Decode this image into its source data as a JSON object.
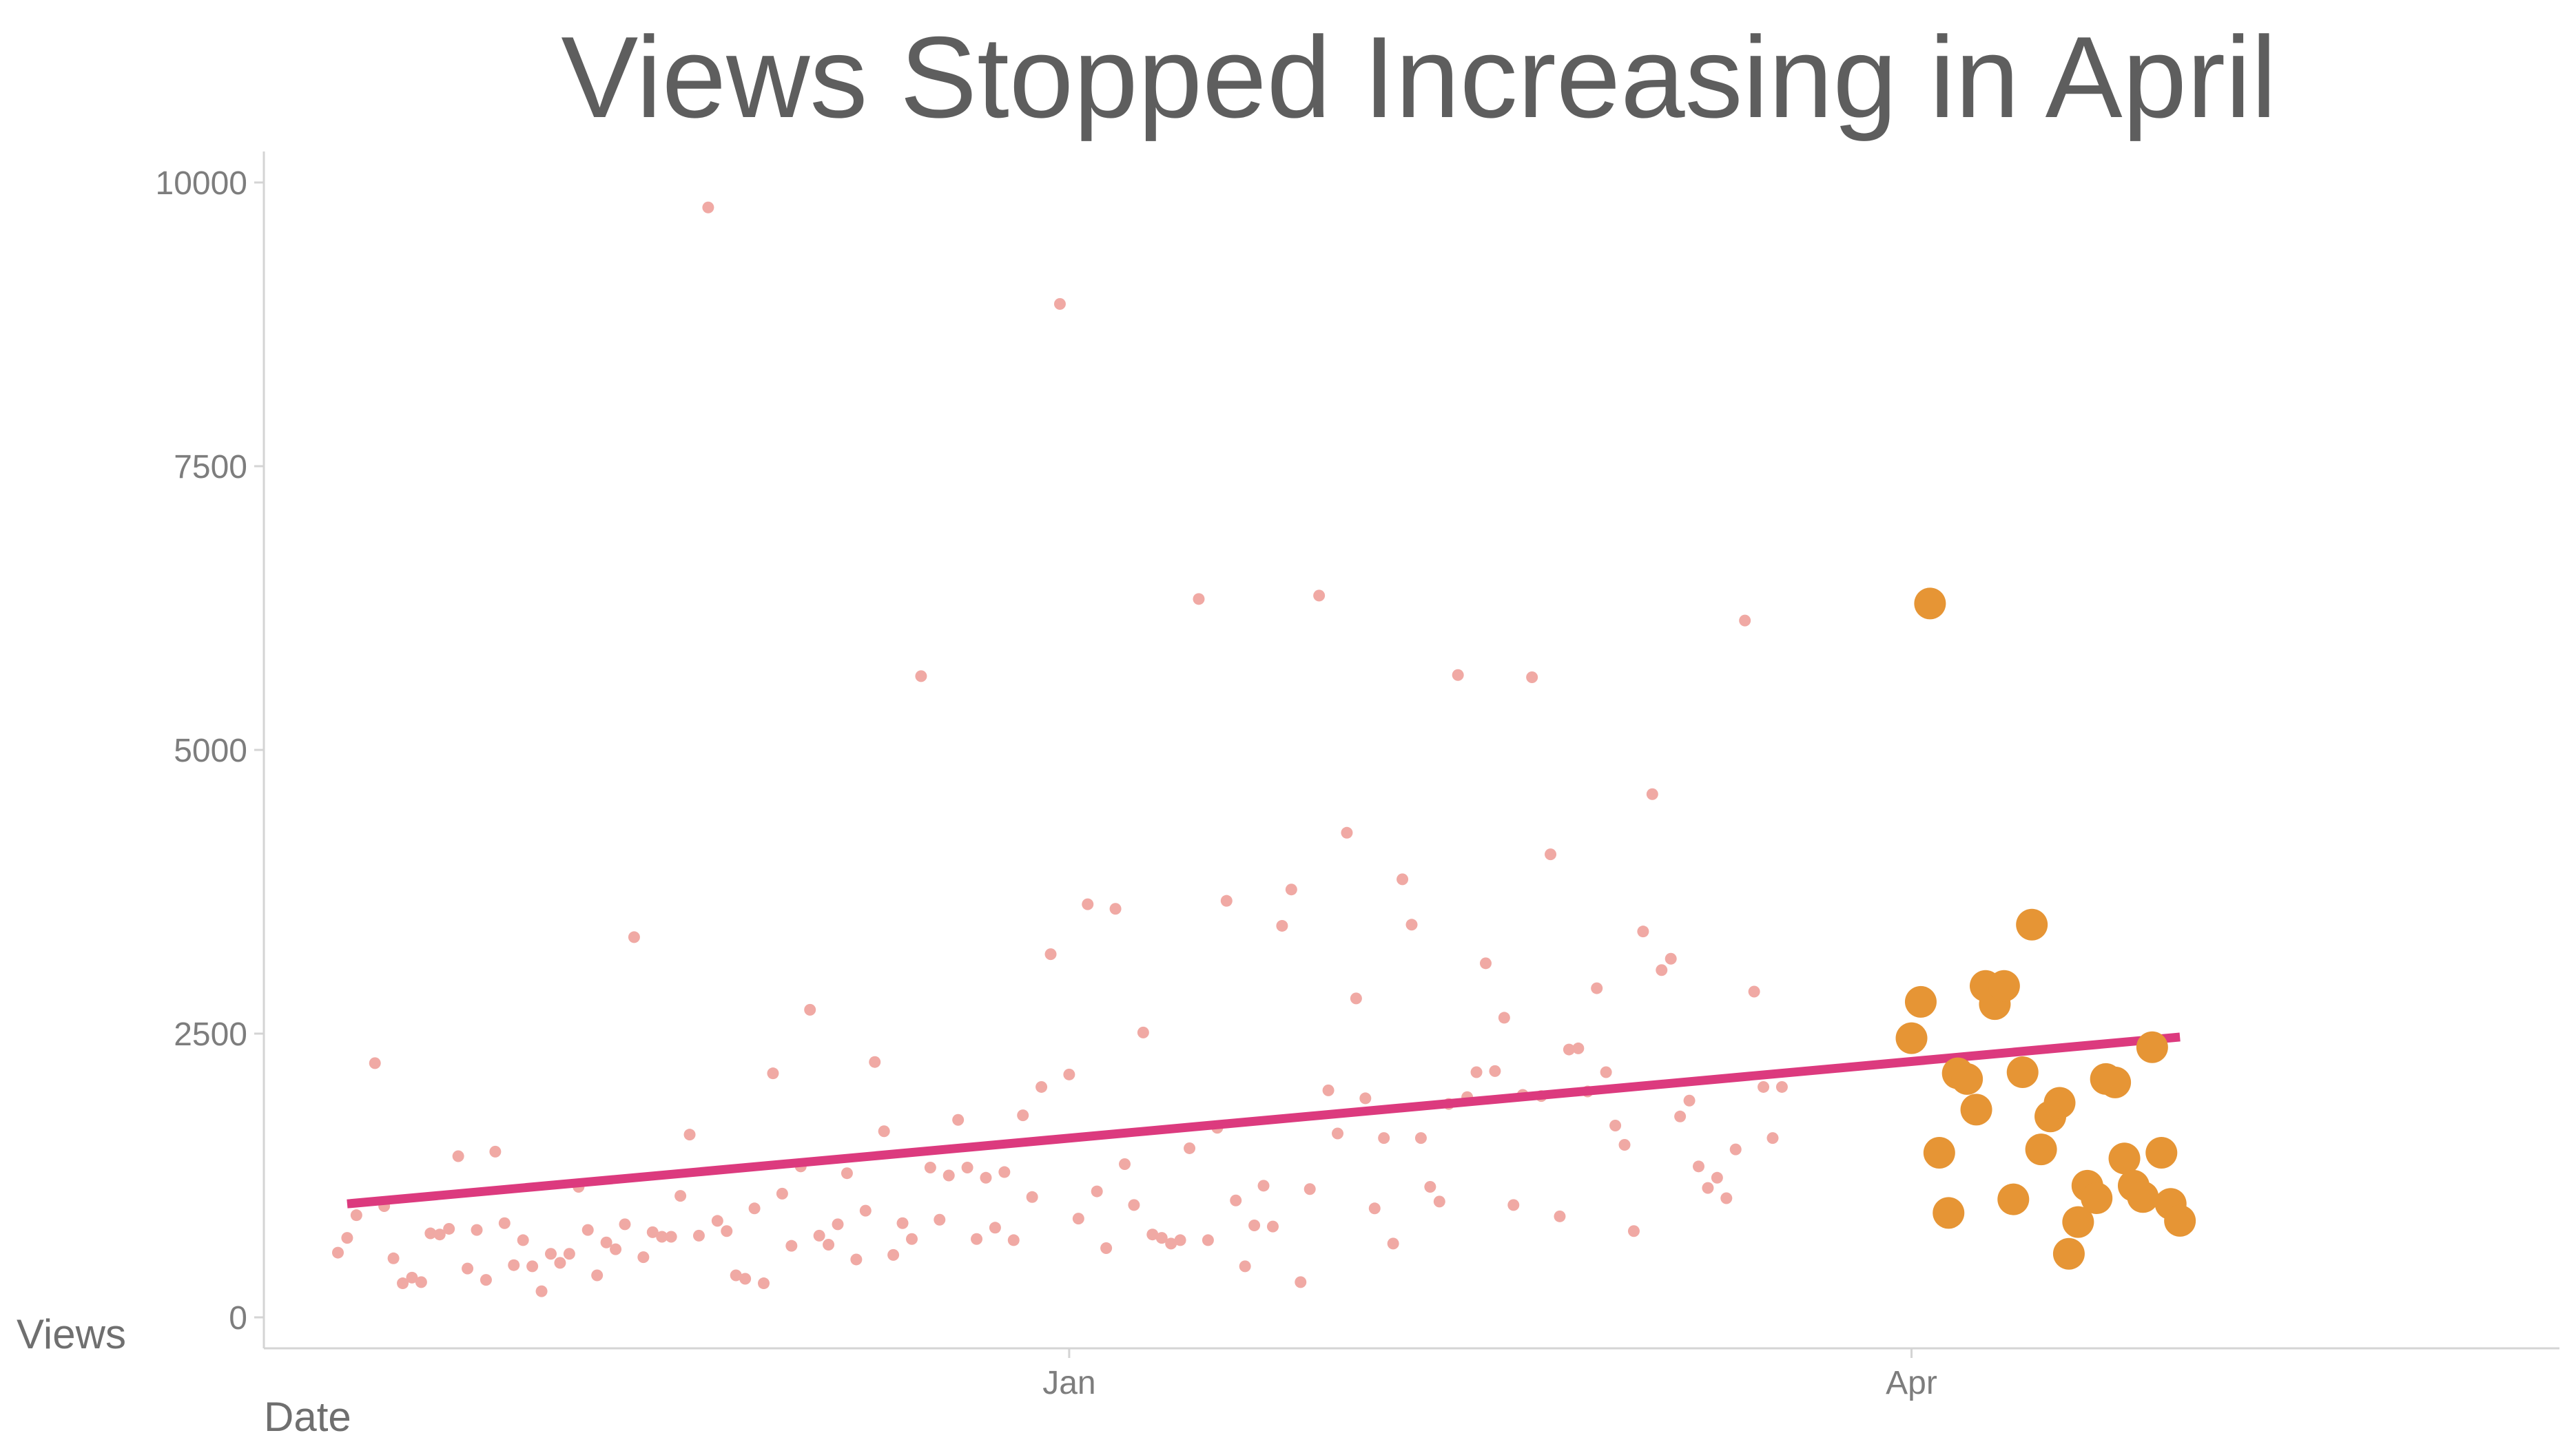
{
  "chart_data": {
    "type": "scatter",
    "title": "Views Stopped Increasing in April",
    "xlabel": "Date",
    "ylabel": "Views",
    "x_ticks": [
      "Jan",
      "Apr"
    ],
    "y_ticks": [
      0,
      2500,
      5000,
      7500,
      10000
    ],
    "ylim": [
      0,
      10300
    ],
    "xlim": [
      "2015-10-06",
      "2016-06-10"
    ],
    "grid": false,
    "legend": "none",
    "colors": {
      "before_april": "#f0a9a4",
      "from_april": "#e69535",
      "trend": "#dc3a7e"
    },
    "series": [
      {
        "points": [
          [
            "2015-10-14",
            570
          ],
          [
            "2015-10-15",
            700
          ],
          [
            "2015-10-16",
            900
          ],
          [
            "2015-10-18",
            2240
          ],
          [
            "2015-10-19",
            980
          ],
          [
            "2015-10-20",
            520
          ],
          [
            "2015-10-21",
            300
          ],
          [
            "2015-10-22",
            350
          ],
          [
            "2015-10-23",
            310
          ],
          [
            "2015-10-24",
            740
          ],
          [
            "2015-10-25",
            730
          ],
          [
            "2015-10-26",
            780
          ],
          [
            "2015-10-27",
            1420
          ],
          [
            "2015-10-28",
            430
          ],
          [
            "2015-10-29",
            770
          ],
          [
            "2015-10-30",
            330
          ],
          [
            "2015-10-31",
            1460
          ],
          [
            "2015-11-01",
            830
          ],
          [
            "2015-11-02",
            460
          ],
          [
            "2015-11-03",
            680
          ],
          [
            "2015-11-04",
            450
          ],
          [
            "2015-11-05",
            230
          ],
          [
            "2015-11-06",
            560
          ],
          [
            "2015-11-07",
            480
          ],
          [
            "2015-11-08",
            560
          ],
          [
            "2015-11-09",
            1150
          ],
          [
            "2015-11-10",
            770
          ],
          [
            "2015-11-11",
            370
          ],
          [
            "2015-11-12",
            660
          ],
          [
            "2015-11-13",
            600
          ],
          [
            "2015-11-14",
            820
          ],
          [
            "2015-11-15",
            3350
          ],
          [
            "2015-11-16",
            530
          ],
          [
            "2015-11-17",
            750
          ],
          [
            "2015-11-18",
            710
          ],
          [
            "2015-11-19",
            710
          ],
          [
            "2015-11-20",
            1070
          ],
          [
            "2015-11-21",
            1610
          ],
          [
            "2015-11-22",
            720
          ],
          [
            "2015-11-23",
            9780
          ],
          [
            "2015-11-24",
            850
          ],
          [
            "2015-11-25",
            760
          ],
          [
            "2015-11-26",
            370
          ],
          [
            "2015-11-27",
            340
          ],
          [
            "2015-11-28",
            960
          ],
          [
            "2015-11-29",
            300
          ],
          [
            "2015-11-30",
            2150
          ],
          [
            "2015-12-01",
            1090
          ],
          [
            "2015-12-02",
            630
          ],
          [
            "2015-12-03",
            1330
          ],
          [
            "2015-12-04",
            2710
          ],
          [
            "2015-12-05",
            720
          ],
          [
            "2015-12-06",
            640
          ],
          [
            "2015-12-07",
            820
          ],
          [
            "2015-12-08",
            1270
          ],
          [
            "2015-12-09",
            510
          ],
          [
            "2015-12-10",
            940
          ],
          [
            "2015-12-11",
            2250
          ],
          [
            "2015-12-12",
            1640
          ],
          [
            "2015-12-13",
            550
          ],
          [
            "2015-12-14",
            830
          ],
          [
            "2015-12-15",
            690
          ],
          [
            "2015-12-16",
            5650
          ],
          [
            "2015-12-17",
            1320
          ],
          [
            "2015-12-18",
            860
          ],
          [
            "2015-12-19",
            1250
          ],
          [
            "2015-12-20",
            1740
          ],
          [
            "2015-12-21",
            1320
          ],
          [
            "2015-12-22",
            690
          ],
          [
            "2015-12-23",
            1230
          ],
          [
            "2015-12-24",
            790
          ],
          [
            "2015-12-25",
            1280
          ],
          [
            "2015-12-26",
            680
          ],
          [
            "2015-12-27",
            1780
          ],
          [
            "2015-12-28",
            1060
          ],
          [
            "2015-12-29",
            2030
          ],
          [
            "2015-12-30",
            3200
          ],
          [
            "2015-12-31",
            8930
          ],
          [
            "2016-01-01",
            2140
          ],
          [
            "2016-01-02",
            870
          ],
          [
            "2016-01-03",
            3640
          ],
          [
            "2016-01-04",
            1110
          ],
          [
            "2016-01-05",
            610
          ],
          [
            "2016-01-06",
            3600
          ],
          [
            "2016-01-07",
            1350
          ],
          [
            "2016-01-08",
            990
          ],
          [
            "2016-01-09",
            2510
          ],
          [
            "2016-01-10",
            730
          ],
          [
            "2016-01-11",
            700
          ],
          [
            "2016-01-12",
            650
          ],
          [
            "2016-01-13",
            680
          ],
          [
            "2016-01-14",
            1490
          ],
          [
            "2016-01-15",
            6330
          ],
          [
            "2016-01-16",
            680
          ],
          [
            "2016-01-17",
            1670
          ],
          [
            "2016-01-18",
            3670
          ],
          [
            "2016-01-19",
            1030
          ],
          [
            "2016-01-20",
            450
          ],
          [
            "2016-01-21",
            810
          ],
          [
            "2016-01-22",
            1160
          ],
          [
            "2016-01-23",
            800
          ],
          [
            "2016-01-24",
            3450
          ],
          [
            "2016-01-25",
            3770
          ],
          [
            "2016-01-26",
            310
          ],
          [
            "2016-01-27",
            1130
          ],
          [
            "2016-01-28",
            6360
          ],
          [
            "2016-01-29",
            2000
          ],
          [
            "2016-01-30",
            1620
          ],
          [
            "2016-01-31",
            4270
          ],
          [
            "2016-02-01",
            2810
          ],
          [
            "2016-02-02",
            1930
          ],
          [
            "2016-02-03",
            960
          ],
          [
            "2016-02-04",
            1580
          ],
          [
            "2016-02-05",
            650
          ],
          [
            "2016-02-06",
            3860
          ],
          [
            "2016-02-07",
            3460
          ],
          [
            "2016-02-08",
            1580
          ],
          [
            "2016-02-09",
            1150
          ],
          [
            "2016-02-10",
            1020
          ],
          [
            "2016-02-11",
            1880
          ],
          [
            "2016-02-12",
            5660
          ],
          [
            "2016-02-13",
            1940
          ],
          [
            "2016-02-14",
            2160
          ],
          [
            "2016-02-15",
            3120
          ],
          [
            "2016-02-16",
            2170
          ],
          [
            "2016-02-17",
            2640
          ],
          [
            "2016-02-18",
            990
          ],
          [
            "2016-02-19",
            1960
          ],
          [
            "2016-02-20",
            5640
          ],
          [
            "2016-02-21",
            1950
          ],
          [
            "2016-02-22",
            4080
          ],
          [
            "2016-02-23",
            890
          ],
          [
            "2016-02-24",
            2360
          ],
          [
            "2016-02-25",
            2370
          ],
          [
            "2016-02-26",
            1990
          ],
          [
            "2016-02-27",
            2900
          ],
          [
            "2016-02-28",
            2160
          ],
          [
            "2016-02-29",
            1690
          ],
          [
            "2016-03-01",
            1520
          ],
          [
            "2016-03-02",
            760
          ],
          [
            "2016-03-03",
            3400
          ],
          [
            "2016-03-04",
            4610
          ],
          [
            "2016-03-05",
            3060
          ],
          [
            "2016-03-06",
            3160
          ],
          [
            "2016-03-07",
            1770
          ],
          [
            "2016-03-08",
            1910
          ],
          [
            "2016-03-09",
            1330
          ],
          [
            "2016-03-10",
            1140
          ],
          [
            "2016-03-11",
            1230
          ],
          [
            "2016-03-12",
            1050
          ],
          [
            "2016-03-13",
            1480
          ],
          [
            "2016-03-14",
            6140
          ],
          [
            "2016-03-15",
            2870
          ],
          [
            "2016-03-16",
            2030
          ],
          [
            "2016-03-17",
            1580
          ],
          [
            "2016-03-18",
            2030
          ]
        ]
      },
      {
        "points": [
          [
            "2016-04-01",
            2460
          ],
          [
            "2016-04-02",
            2780
          ],
          [
            "2016-04-03",
            6290
          ],
          [
            "2016-04-04",
            1450
          ],
          [
            "2016-04-05",
            920
          ],
          [
            "2016-04-06",
            2150
          ],
          [
            "2016-04-07",
            2100
          ],
          [
            "2016-04-08",
            1830
          ],
          [
            "2016-04-09",
            2920
          ],
          [
            "2016-04-10",
            2760
          ],
          [
            "2016-04-11",
            2920
          ],
          [
            "2016-04-12",
            1040
          ],
          [
            "2016-04-13",
            2160
          ],
          [
            "2016-04-14",
            3460
          ],
          [
            "2016-04-15",
            1480
          ],
          [
            "2016-04-16",
            1770
          ],
          [
            "2016-04-17",
            1890
          ],
          [
            "2016-04-18",
            560
          ],
          [
            "2016-04-19",
            840
          ],
          [
            "2016-04-20",
            1160
          ],
          [
            "2016-04-21",
            1050
          ],
          [
            "2016-04-22",
            2100
          ],
          [
            "2016-04-23",
            2070
          ],
          [
            "2016-04-24",
            1400
          ],
          [
            "2016-04-25",
            1160
          ],
          [
            "2016-04-26",
            1060
          ],
          [
            "2016-04-27",
            2380
          ],
          [
            "2016-04-28",
            1450
          ],
          [
            "2016-04-29",
            1000
          ],
          [
            "2016-04-30",
            850
          ]
        ]
      }
    ],
    "trend_line": {
      "x": [
        "2015-10-15",
        "2016-04-30"
      ],
      "y": [
        1000,
        2470
      ]
    }
  }
}
